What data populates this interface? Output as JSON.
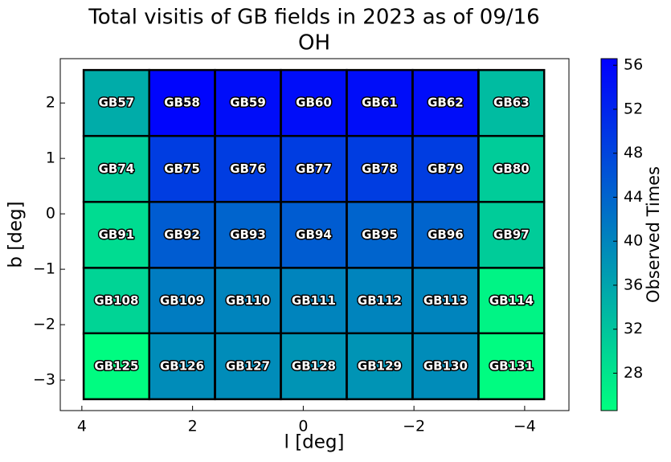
{
  "chart_data": {
    "type": "heatmap",
    "title": [
      "Total visitis of GB fields in 2023 as of 09/16",
      "OH"
    ],
    "x_label": "l [deg]",
    "y_label": "b [deg]",
    "colorbar_label": "Observed Times",
    "x": [
      3.375,
      2.19,
      1.0,
      -0.19,
      -1.38,
      -2.57,
      -3.76
    ],
    "y": [
      2.0,
      0.81,
      -0.38,
      -1.57,
      -2.75
    ],
    "labels": [
      [
        "GB57",
        "GB58",
        "GB59",
        "GB60",
        "GB61",
        "GB62",
        "GB63"
      ],
      [
        "GB74",
        "GB75",
        "GB76",
        "GB77",
        "GB78",
        "GB79",
        "GB80"
      ],
      [
        "GB91",
        "GB92",
        "GB93",
        "GB94",
        "GB95",
        "GB96",
        "GB97"
      ],
      [
        "GB108",
        "GB109",
        "GB110",
        "GB111",
        "GB112",
        "GB113",
        "GB114"
      ],
      [
        "GB125",
        "GB126",
        "GB127",
        "GB128",
        "GB129",
        "GB130",
        "GB131"
      ]
    ],
    "values": [
      [
        35,
        56,
        55,
        55,
        55,
        55,
        33
      ],
      [
        31,
        49,
        49,
        49,
        49,
        49,
        31
      ],
      [
        29,
        45,
        44,
        45,
        44,
        44,
        31
      ],
      [
        30,
        41,
        40,
        40,
        40,
        40,
        26
      ],
      [
        25,
        39,
        39,
        38,
        38,
        39,
        25
      ]
    ],
    "xlim": [
      4.39,
      -4.8
    ],
    "ylim": [
      -3.55,
      2.8
    ],
    "xticks": [
      4,
      2,
      0,
      {
        "value": -2,
        "label": "−2"
      },
      {
        "value": -4,
        "label": "−4"
      }
    ],
    "yticks": [
      {
        "value": -3,
        "label": "−3"
      },
      {
        "value": -2,
        "label": "−2"
      },
      {
        "value": -1,
        "label": "−1"
      },
      0,
      1,
      2
    ],
    "clim": [
      24.6,
      56.6
    ],
    "cticks": [
      28,
      32,
      36,
      40,
      44,
      48,
      52,
      56
    ],
    "colormap": "winter_r"
  }
}
